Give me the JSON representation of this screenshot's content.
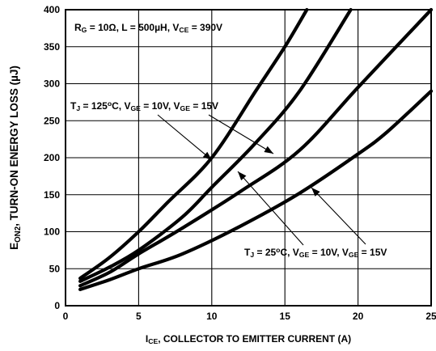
{
  "chart_data": {
    "type": "line",
    "xlabel": {
      "main": "I",
      "sub": "CE",
      "rest": ", COLLECTOR TO EMITTER CURRENT (A)"
    },
    "ylabel": {
      "main": "E",
      "sub": "ON2",
      "rest": ", TURN-ON ENERGY LOSS (µJ)"
    },
    "xlim": [
      0,
      25
    ],
    "ylim": [
      0,
      400
    ],
    "xticks": [
      0,
      5,
      10,
      15,
      20,
      25
    ],
    "yticks": [
      0,
      50,
      100,
      150,
      200,
      250,
      300,
      350,
      400
    ],
    "grid": true,
    "series": [
      {
        "x": [
          1,
          3,
          5,
          7,
          10,
          13,
          15,
          16.5
        ],
        "values": [
          37,
          65,
          100,
          140,
          200,
          290,
          350,
          400
        ]
      },
      {
        "x": [
          1,
          3,
          5,
          8,
          10,
          13,
          16,
          19.5
        ],
        "values": [
          33,
          52,
          75,
          120,
          160,
          220,
          290,
          400
        ]
      },
      {
        "x": [
          1,
          3,
          5,
          8,
          12,
          16,
          20,
          25
        ],
        "values": [
          27,
          45,
          70,
          105,
          155,
          210,
          295,
          400
        ]
      },
      {
        "x": [
          1,
          3,
          5,
          8,
          12,
          16,
          20,
          22,
          25
        ],
        "values": [
          22,
          35,
          50,
          70,
          108,
          152,
          205,
          235,
          290
        ]
      }
    ],
    "annotations": [
      {
        "id": "conditions",
        "parts": [
          {
            "t": "R"
          },
          {
            "t": "G",
            "sub": true
          },
          {
            "t": " = 10Ω, L = 500µH, V"
          },
          {
            "t": "CE",
            "sub": true
          },
          {
            "t": " = 390V"
          }
        ]
      },
      {
        "id": "tj125",
        "parts": [
          {
            "t": "T"
          },
          {
            "t": "J",
            "sub": true
          },
          {
            "t": " = 125"
          },
          {
            "t": "o",
            "sup": true
          },
          {
            "t": "C, V"
          },
          {
            "t": "GE",
            "sub": true
          },
          {
            "t": " = 10V, V"
          },
          {
            "t": "GE",
            "sub": true
          },
          {
            "t": " = 15V"
          }
        ]
      },
      {
        "id": "tj25",
        "parts": [
          {
            "t": "T"
          },
          {
            "t": "J",
            "sub": true
          },
          {
            "t": " = 25"
          },
          {
            "t": "o",
            "sup": true
          },
          {
            "t": "C, V"
          },
          {
            "t": "GE",
            "sub": true
          },
          {
            "t": " = 10V, V"
          },
          {
            "t": "GE",
            "sub": true
          },
          {
            "t": " = 15V"
          }
        ]
      }
    ]
  }
}
